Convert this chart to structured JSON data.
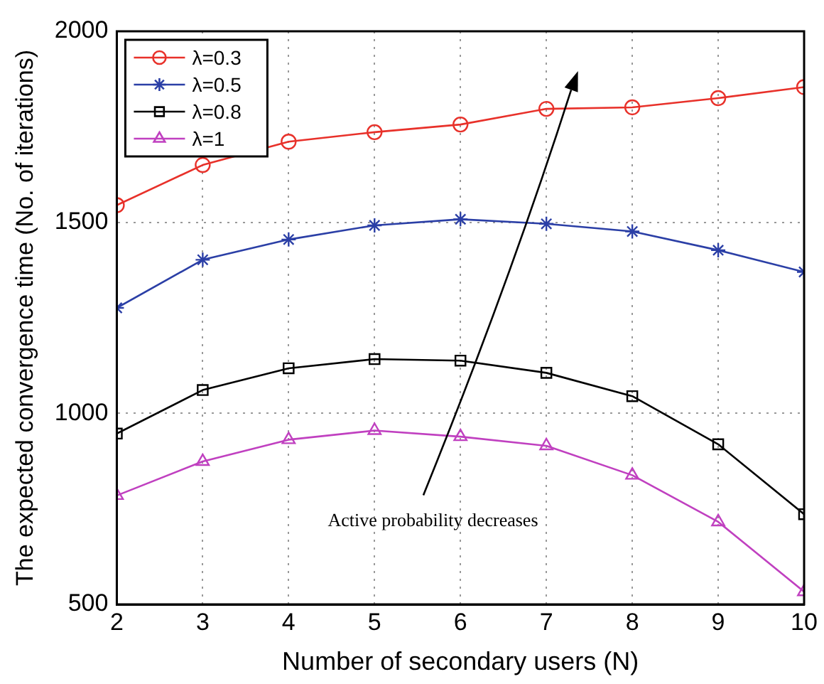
{
  "chart_data": {
    "type": "line",
    "xlabel": "Number of secondary users (N)",
    "ylabel": "The expected convergence time (No. of iterations)",
    "x": [
      2,
      3,
      4,
      5,
      6,
      7,
      8,
      9,
      10
    ],
    "xlim": [
      2,
      10
    ],
    "xticks": [
      2,
      3,
      4,
      5,
      6,
      7,
      8,
      9,
      10
    ],
    "ylim": [
      500,
      2000
    ],
    "yticks": [
      500,
      1000,
      1500,
      2000
    ],
    "grid": true,
    "legend": "top left",
    "line_style": "solid",
    "annotations": [
      "Active probability decreases"
    ],
    "series": [
      {
        "name": "λ=0.3",
        "color": "#e8312a",
        "marker": "circle",
        "values": [
          1545,
          1650,
          1711,
          1736,
          1756,
          1797,
          1801,
          1825,
          1854
        ]
      },
      {
        "name": "λ=0.5",
        "color": "#2b3fa6",
        "marker": "cross",
        "values": [
          1276,
          1402,
          1455,
          1492,
          1508,
          1496,
          1476,
          1427,
          1370
        ]
      },
      {
        "name": "λ=0.8",
        "color": "#000000",
        "marker": "square",
        "values": [
          947,
          1061,
          1118,
          1142,
          1138,
          1106,
          1045,
          919,
          736
        ]
      },
      {
        "name": "λ=1",
        "color": "#c040c0",
        "marker": "triangle",
        "values": [
          785,
          874,
          931,
          955,
          939,
          915,
          838,
          716,
          533
        ]
      }
    ]
  }
}
